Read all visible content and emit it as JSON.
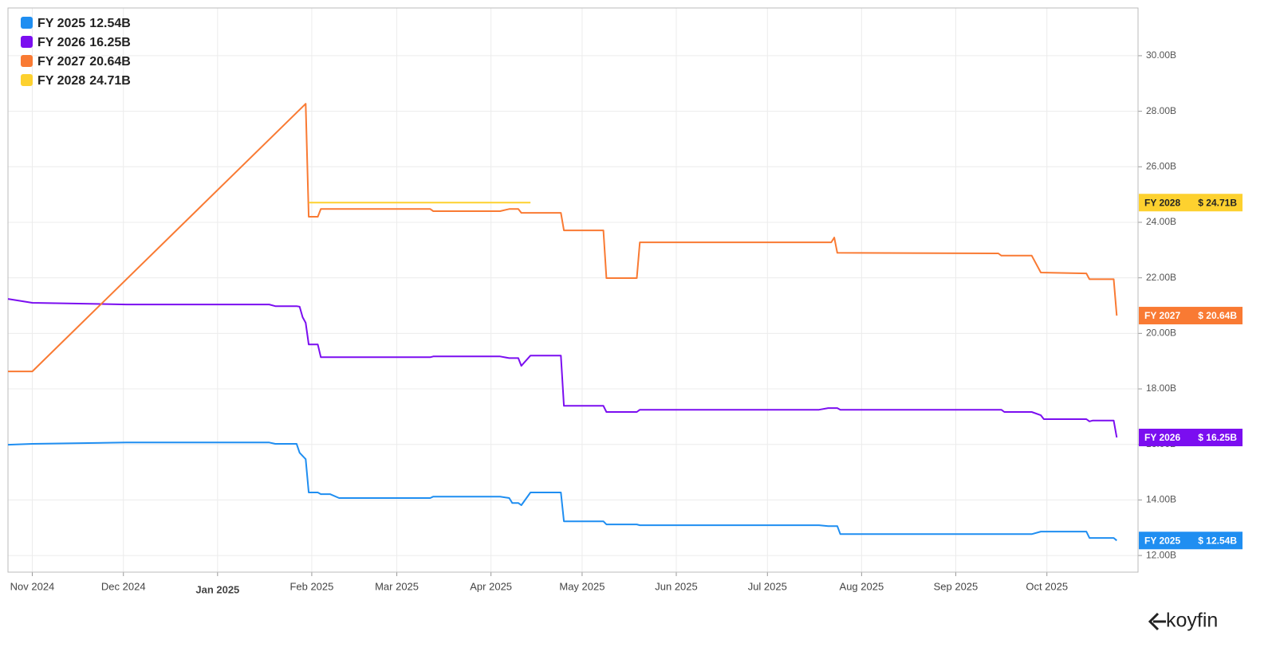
{
  "chart_data": {
    "type": "line",
    "xlim": [
      "2024-10-24",
      "2025-10-31"
    ],
    "xticks": [
      {
        "value": "2024-11",
        "label": "Nov 2024"
      },
      {
        "value": "2024-12",
        "label": "Dec 2024"
      },
      {
        "value": "2025-01",
        "label": "Jan 2025"
      },
      {
        "value": "2025-02",
        "label": "Feb 2025"
      },
      {
        "value": "2025-03",
        "label": "Mar 2025"
      },
      {
        "value": "2025-04",
        "label": "Apr 2025"
      },
      {
        "value": "2025-05",
        "label": "May 2025"
      },
      {
        "value": "2025-06",
        "label": "Jun 2025"
      },
      {
        "value": "2025-07",
        "label": "Jul 2025"
      },
      {
        "value": "2025-08",
        "label": "Aug 2025"
      },
      {
        "value": "2025-09",
        "label": "Sep 2025"
      },
      {
        "value": "2025-10",
        "label": "Oct 2025"
      }
    ],
    "ylim": [
      11.4,
      31.72
    ],
    "yticks": [
      {
        "value": 12,
        "label": "12.00B"
      },
      {
        "value": 14,
        "label": "14.00B"
      },
      {
        "value": 16,
        "label": "16.00B"
      },
      {
        "value": 18,
        "label": "18.00B"
      },
      {
        "value": 20,
        "label": "20.00B"
      },
      {
        "value": 22,
        "label": "22.00B"
      },
      {
        "value": 24,
        "label": "24.00B"
      },
      {
        "value": 26,
        "label": "26.00B"
      },
      {
        "value": 28,
        "label": "28.00B"
      },
      {
        "value": 30,
        "label": "30.00B"
      }
    ],
    "grid": true,
    "legend": "top-left",
    "y_axis_side": "right",
    "watermark": "koyfin",
    "series": [
      {
        "name": "FY 2025",
        "color": "#1f8ef1",
        "legend_label": "12.54B",
        "tag_label": "$ 12.54B",
        "x": [
          "2024-10-24",
          "2024-11-01",
          "2024-12-02",
          "2025-01-18",
          "2025-01-20",
          "2025-01-27",
          "2025-01-28",
          "2025-01-30",
          "2025-01-31",
          "2025-02-03",
          "2025-02-04",
          "2025-02-07",
          "2025-02-10",
          "2025-03-12",
          "2025-03-13",
          "2025-04-04",
          "2025-04-07",
          "2025-04-08",
          "2025-04-10",
          "2025-04-11",
          "2025-04-14",
          "2025-04-24",
          "2025-04-25",
          "2025-05-08",
          "2025-05-09",
          "2025-05-19",
          "2025-05-20",
          "2025-07-18",
          "2025-07-21",
          "2025-07-24",
          "2025-07-25",
          "2025-09-26",
          "2025-09-29",
          "2025-09-30",
          "2025-10-14",
          "2025-10-15",
          "2025-10-23",
          "2025-10-24"
        ],
        "values": [
          15.99,
          16.02,
          16.07,
          16.07,
          16.02,
          16.02,
          15.7,
          15.47,
          14.27,
          14.27,
          14.21,
          14.21,
          14.07,
          14.07,
          14.12,
          14.12,
          14.07,
          13.89,
          13.89,
          13.81,
          14.27,
          14.27,
          13.23,
          13.23,
          13.12,
          13.12,
          13.09,
          13.09,
          13.06,
          13.06,
          12.77,
          12.77,
          12.86,
          12.86,
          12.86,
          12.63,
          12.63,
          12.54
        ]
      },
      {
        "name": "FY 2026",
        "color": "#7b0ef0",
        "legend_label": "16.25B",
        "tag_label": "$ 16.25B",
        "x": [
          "2024-10-24",
          "2024-11-01",
          "2024-12-02",
          "2025-01-18",
          "2025-01-20",
          "2025-01-27",
          "2025-01-28",
          "2025-01-29",
          "2025-01-30",
          "2025-01-31",
          "2025-02-03",
          "2025-02-04",
          "2025-03-12",
          "2025-03-13",
          "2025-04-04",
          "2025-04-07",
          "2025-04-10",
          "2025-04-11",
          "2025-04-14",
          "2025-04-24",
          "2025-04-25",
          "2025-05-08",
          "2025-05-09",
          "2025-05-19",
          "2025-05-20",
          "2025-07-18",
          "2025-07-21",
          "2025-07-24",
          "2025-07-25",
          "2025-09-16",
          "2025-09-17",
          "2025-09-26",
          "2025-09-29",
          "2025-09-30",
          "2025-10-14",
          "2025-10-15",
          "2025-10-16",
          "2025-10-23",
          "2025-10-24"
        ],
        "values": [
          21.24,
          21.1,
          21.04,
          21.04,
          20.98,
          20.98,
          20.96,
          20.58,
          20.38,
          19.6,
          19.6,
          19.14,
          19.14,
          19.17,
          19.17,
          19.11,
          19.11,
          18.83,
          19.2,
          19.2,
          17.39,
          17.39,
          17.17,
          17.17,
          17.25,
          17.25,
          17.31,
          17.31,
          17.25,
          17.25,
          17.17,
          17.17,
          17.05,
          16.91,
          16.91,
          16.83,
          16.86,
          16.86,
          16.25
        ]
      },
      {
        "name": "FY 2027",
        "color": "#f97a33",
        "legend_label": "20.64B",
        "tag_label": "$ 20.64B",
        "x": [
          "2024-10-24",
          "2024-11-01",
          "2025-01-30",
          "2025-01-31",
          "2025-02-03",
          "2025-02-04",
          "2025-03-12",
          "2025-03-13",
          "2025-04-04",
          "2025-04-07",
          "2025-04-10",
          "2025-04-11",
          "2025-04-24",
          "2025-04-25",
          "2025-05-08",
          "2025-05-09",
          "2025-05-19",
          "2025-05-20",
          "2025-07-22",
          "2025-07-23",
          "2025-07-24",
          "2025-09-15",
          "2025-09-16",
          "2025-09-26",
          "2025-09-29",
          "2025-10-14",
          "2025-10-15",
          "2025-10-23",
          "2025-10-24"
        ],
        "values": [
          18.63,
          18.63,
          28.27,
          24.2,
          24.2,
          24.48,
          24.48,
          24.4,
          24.4,
          24.48,
          24.48,
          24.34,
          24.34,
          23.71,
          23.71,
          21.99,
          21.99,
          23.28,
          23.28,
          23.45,
          22.9,
          22.88,
          22.8,
          22.8,
          22.19,
          22.16,
          21.95,
          21.95,
          20.64
        ]
      },
      {
        "name": "FY 2028",
        "color": "#fdd12f",
        "legend_label": "24.71B",
        "tag_label": "$ 24.71B",
        "x": [
          "2025-01-31",
          "2025-04-14"
        ],
        "values": [
          24.71,
          24.71
        ]
      }
    ]
  }
}
